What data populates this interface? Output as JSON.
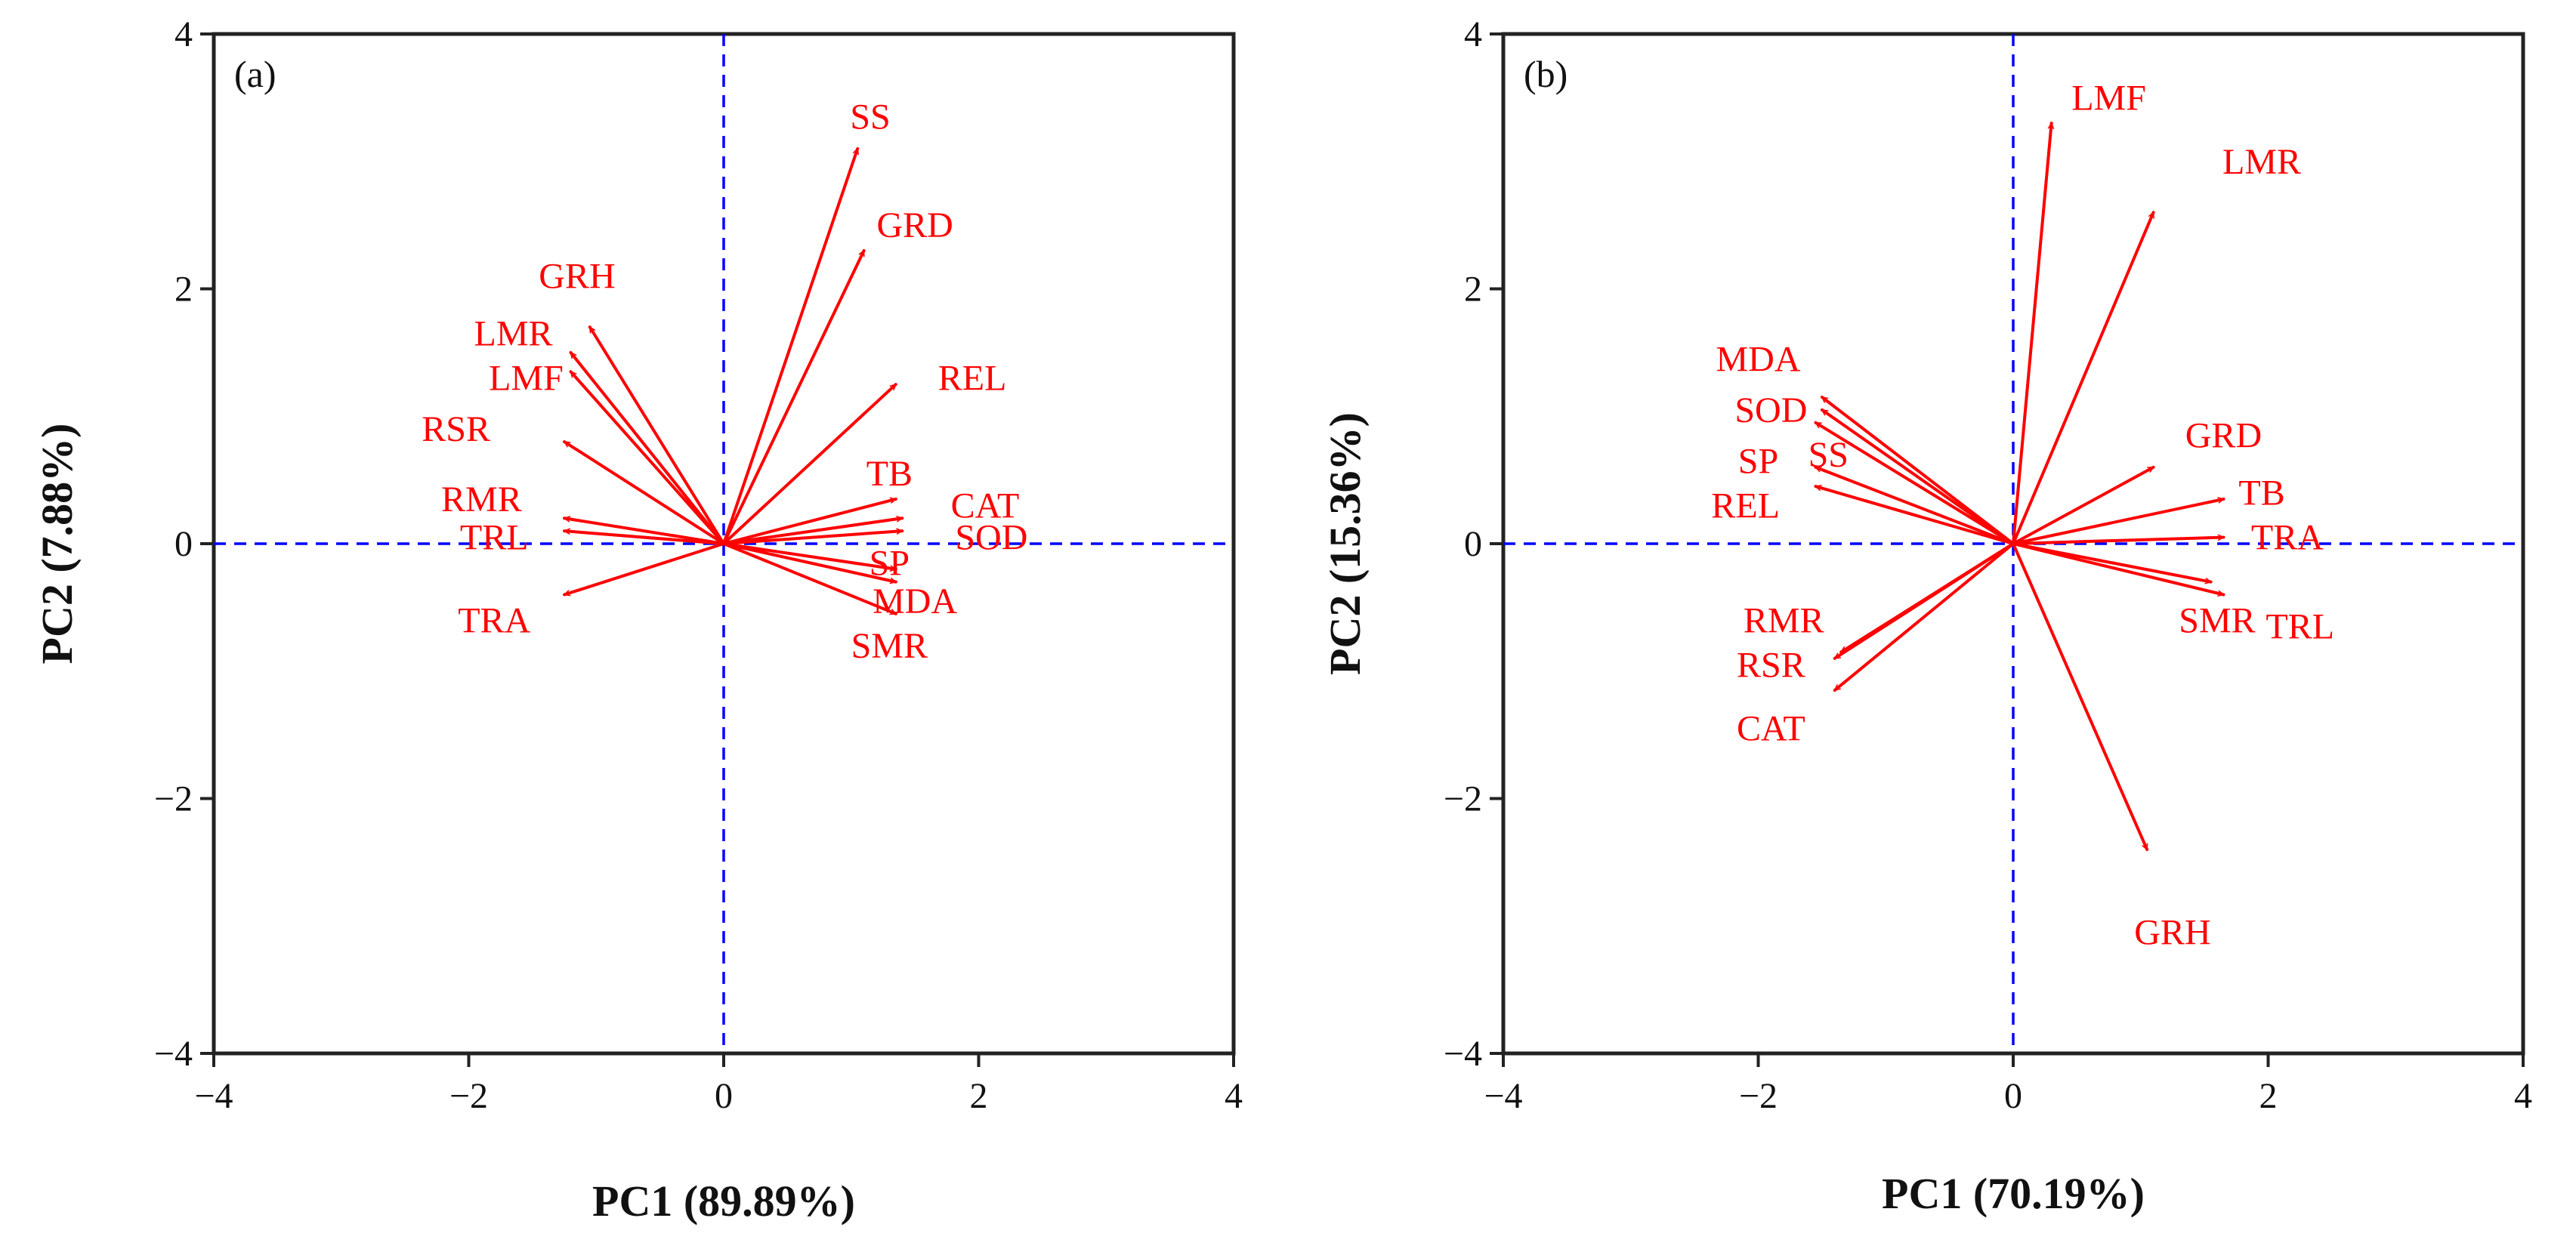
{
  "chart_data": [
    {
      "type": "scatter",
      "subtype": "pca-loading-biplot",
      "panel_label": "(a)",
      "xlabel": "PC1 (89.89%)",
      "ylabel": "PC2 (7.88%)",
      "xlim": [
        -4,
        4
      ],
      "ylim": [
        -4,
        4
      ],
      "x_ticks": [
        -4,
        -2,
        0,
        2,
        4
      ],
      "y_ticks": [
        -4,
        -2,
        0,
        2,
        4
      ],
      "x_tick_labels": [
        "−4",
        "−2",
        "0",
        "2",
        "4"
      ],
      "y_tick_labels": [
        "−4",
        "−2",
        "0",
        "2",
        "4"
      ],
      "vectors": [
        {
          "name": "SS",
          "x": 1.05,
          "y": 3.1,
          "lx": 1.15,
          "ly": 3.35
        },
        {
          "name": "GRD",
          "x": 1.1,
          "y": 2.3,
          "lx": 1.5,
          "ly": 2.5
        },
        {
          "name": "REL",
          "x": 1.35,
          "y": 1.25,
          "lx": 1.95,
          "ly": 1.3
        },
        {
          "name": "TB",
          "x": 1.35,
          "y": 0.35,
          "lx": 1.3,
          "ly": 0.55
        },
        {
          "name": "CAT",
          "x": 1.4,
          "y": 0.2,
          "lx": 2.05,
          "ly": 0.3
        },
        {
          "name": "SOD",
          "x": 1.4,
          "y": 0.1,
          "lx": 2.1,
          "ly": 0.05
        },
        {
          "name": "SP",
          "x": 1.35,
          "y": -0.2,
          "lx": 1.3,
          "ly": -0.15
        },
        {
          "name": "MDA",
          "x": 1.35,
          "y": -0.3,
          "lx": 1.5,
          "ly": -0.45
        },
        {
          "name": "SMR",
          "x": 1.35,
          "y": -0.55,
          "lx": 1.3,
          "ly": -0.8
        },
        {
          "name": "GRH",
          "x": -1.05,
          "y": 1.7,
          "lx": -1.15,
          "ly": 2.1
        },
        {
          "name": "LMR",
          "x": -1.2,
          "y": 1.5,
          "lx": -1.65,
          "ly": 1.65
        },
        {
          "name": "LMF",
          "x": -1.2,
          "y": 1.35,
          "lx": -1.55,
          "ly": 1.3
        },
        {
          "name": "RSR",
          "x": -1.25,
          "y": 0.8,
          "lx": -2.1,
          "ly": 0.9
        },
        {
          "name": "RMR",
          "x": -1.25,
          "y": 0.2,
          "lx": -1.9,
          "ly": 0.35
        },
        {
          "name": "TRL",
          "x": -1.25,
          "y": 0.1,
          "lx": -1.8,
          "ly": 0.05
        },
        {
          "name": "TRA",
          "x": -1.25,
          "y": -0.4,
          "lx": -1.8,
          "ly": -0.6
        }
      ]
    },
    {
      "type": "scatter",
      "subtype": "pca-loading-biplot",
      "panel_label": "(b)",
      "xlabel": "PC1 (70.19%)",
      "ylabel": "PC2 (15.36%)",
      "xlim": [
        -4,
        4
      ],
      "ylim": [
        -4,
        4
      ],
      "x_ticks": [
        -4,
        -2,
        0,
        2,
        4
      ],
      "y_ticks": [
        -4,
        -2,
        0,
        2,
        4
      ],
      "x_tick_labels": [
        "−4",
        "−2",
        "0",
        "2",
        "4"
      ],
      "y_tick_labels": [
        "−4",
        "−2",
        "0",
        "2",
        "4"
      ],
      "vectors": [
        {
          "name": "LMF",
          "x": 0.3,
          "y": 3.3,
          "lx": 0.75,
          "ly": 3.5
        },
        {
          "name": "LMR",
          "x": 1.1,
          "y": 2.6,
          "lx": 1.95,
          "ly": 3.0
        },
        {
          "name": "MDA",
          "x": -1.5,
          "y": 1.15,
          "lx": -2.0,
          "ly": 1.45
        },
        {
          "name": "SOD",
          "x": -1.5,
          "y": 1.05,
          "lx": -1.9,
          "ly": 1.05
        },
        {
          "name": "SS",
          "x": -1.55,
          "y": 0.95,
          "lx": -1.45,
          "ly": 0.7
        },
        {
          "name": "SP",
          "x": -1.55,
          "y": 0.6,
          "lx": -2.0,
          "ly": 0.65
        },
        {
          "name": "REL",
          "x": -1.55,
          "y": 0.45,
          "lx": -2.1,
          "ly": 0.3
        },
        {
          "name": "GRD",
          "x": 1.1,
          "y": 0.6,
          "lx": 1.65,
          "ly": 0.85
        },
        {
          "name": "TB",
          "x": 1.65,
          "y": 0.35,
          "lx": 1.95,
          "ly": 0.4
        },
        {
          "name": "TRA",
          "x": 1.65,
          "y": 0.05,
          "lx": 2.15,
          "ly": 0.05
        },
        {
          "name": "SMR",
          "x": 1.55,
          "y": -0.3,
          "lx": 1.6,
          "ly": -0.6
        },
        {
          "name": "TRL",
          "x": 1.65,
          "y": -0.4,
          "lx": 2.25,
          "ly": -0.65
        },
        {
          "name": "RMR",
          "x": -1.35,
          "y": -0.85,
          "lx": -1.8,
          "ly": -0.6
        },
        {
          "name": "RSR",
          "x": -1.4,
          "y": -0.9,
          "lx": -1.9,
          "ly": -0.95
        },
        {
          "name": "CAT",
          "x": -1.4,
          "y": -1.15,
          "lx": -1.9,
          "ly": -1.45
        },
        {
          "name": "GRH",
          "x": 1.05,
          "y": -2.4,
          "lx": 1.25,
          "ly": -3.05
        }
      ]
    }
  ],
  "colors": {
    "arrow": "#ff0000",
    "label": "#ff0000",
    "ref_line": "#0000ff",
    "frame": "#222222"
  }
}
